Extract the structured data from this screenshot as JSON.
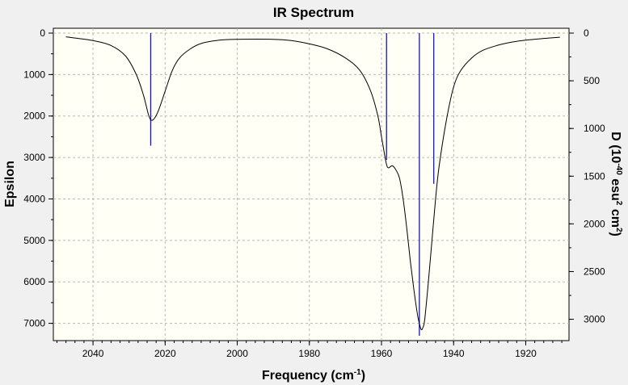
{
  "chart_data": {
    "type": "line",
    "title": "IR Spectrum",
    "xlabel": "Frequency",
    "xlabel_unit": "(cm",
    "xlabel_unit_exp": "-1",
    "xlabel_unit_close": ")",
    "ylabel_left": "Epsilon",
    "ylabel_right": "D",
    "ylabel_right_unit": "(10",
    "ylabel_right_exp1": "-40",
    "ylabel_right_unit2": "esu",
    "ylabel_right_exp2": "2",
    "ylabel_right_unit3": "cm",
    "ylabel_right_exp3": "2",
    "ylabel_right_unit4": ")",
    "xlim": [
      2051,
      1908
    ],
    "ylim_left": [
      0,
      7300
    ],
    "ylim_right": [
      0,
      3173
    ],
    "y_inverted": true,
    "grid": true,
    "x_ticks": [
      2040,
      2020,
      2000,
      1980,
      1960,
      1940,
      1920
    ],
    "x_minor_step": 2.5,
    "y_left_ticks": [
      0,
      1000,
      2000,
      3000,
      4000,
      5000,
      6000,
      7000
    ],
    "y_left_minor_step": 500,
    "y_right_ticks": [
      0,
      500,
      1000,
      1500,
      2000,
      2500,
      3000
    ],
    "y_right_minor_step": 250,
    "series": [
      {
        "kind": "spectrum",
        "x": [
          2047.5,
          2045,
          2040,
          2035,
          2031,
          2028,
          2026,
          2024.5,
          2023.5,
          2022,
          2020,
          2018,
          2016,
          2013,
          2010,
          2005,
          2000,
          1990,
          1985,
          1980,
          1975,
          1970,
          1966,
          1963,
          1961,
          1960,
          1959,
          1958.5,
          1958,
          1957,
          1956,
          1955,
          1954,
          1953,
          1952,
          1951,
          1950,
          1949.5,
          1949,
          1948.5,
          1948,
          1947,
          1946,
          1945,
          1944,
          1942,
          1940,
          1938,
          1935,
          1932,
          1928,
          1924,
          1920,
          1915,
          1910.5
        ],
        "y": [
          90,
          120,
          180,
          300,
          550,
          1000,
          1500,
          2000,
          2100,
          1900,
          1400,
          900,
          600,
          380,
          250,
          170,
          150,
          150,
          180,
          260,
          380,
          600,
          900,
          1400,
          2000,
          2500,
          3000,
          3200,
          3250,
          3200,
          3300,
          3500,
          4000,
          4700,
          5500,
          6200,
          6800,
          7000,
          7150,
          7100,
          6900,
          6000,
          5000,
          4000,
          3200,
          2100,
          1300,
          900,
          600,
          420,
          300,
          220,
          170,
          130,
          100
        ]
      },
      {
        "kind": "sticks",
        "x": [
          2024,
          1958.6,
          1949.5,
          1945.5
        ],
        "y_right": [
          1180,
          1330,
          3173,
          1580
        ]
      }
    ]
  }
}
